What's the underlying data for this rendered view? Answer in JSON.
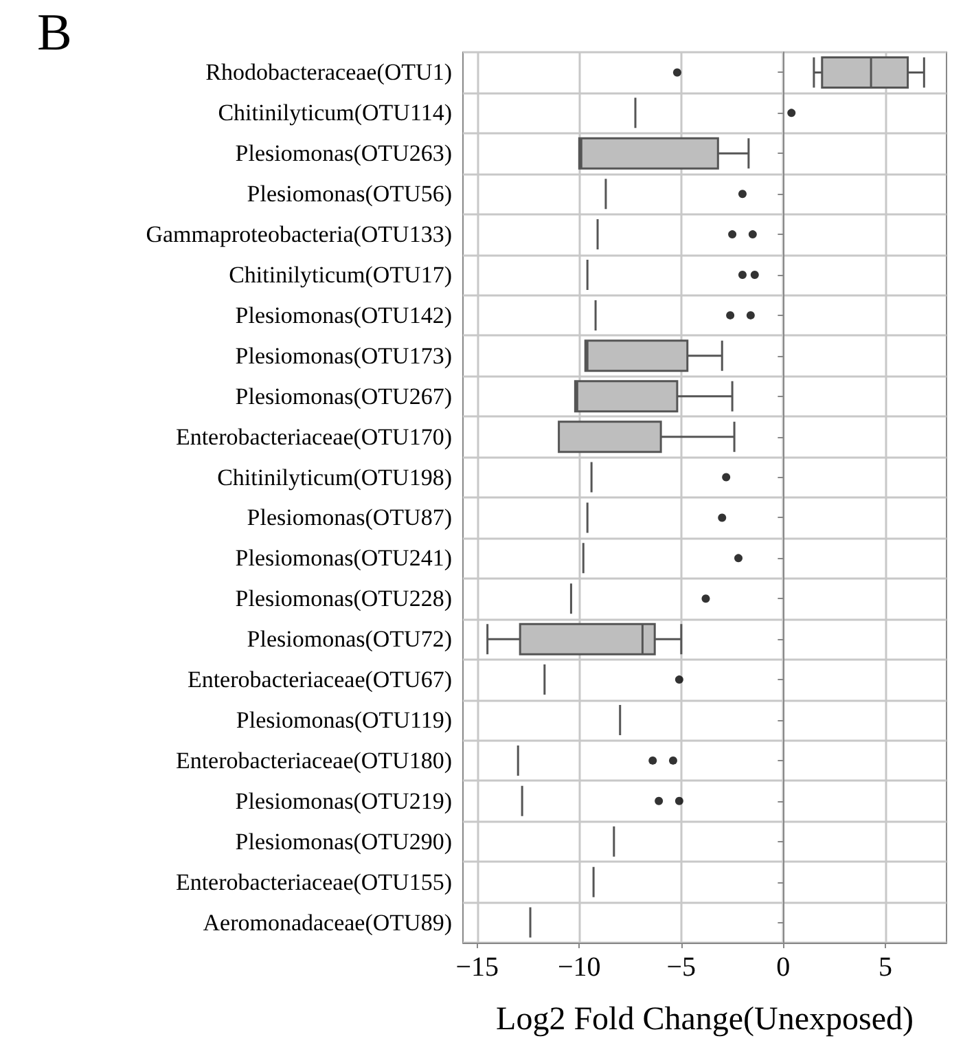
{
  "chart_data": {
    "type": "box",
    "title": "B",
    "xlabel": "Log2 Fold Change(Unexposed)",
    "orientation": "horizontal",
    "grid": true,
    "categories": [
      "Rhodobacteraceae(OTU1)",
      "Chitinilyticum(OTU114)",
      "Plesiomonas(OTU263)",
      "Plesiomonas(OTU56)",
      "Gammaproteobacteria(OTU133)",
      "Chitinilyticum(OTU17)",
      "Plesiomonas(OTU142)",
      "Plesiomonas(OTU173)",
      "Plesiomonas(OTU267)",
      "Enterobacteriaceae(OTU170)",
      "Chitinilyticum(OTU198)",
      "Plesiomonas(OTU87)",
      "Plesiomonas(OTU241)",
      "Plesiomonas(OTU228)",
      "Plesiomonas(OTU72)",
      "Enterobacteriaceae(OTU67)",
      "Plesiomonas(OTU119)",
      "Enterobacteriaceae(OTU180)",
      "Plesiomonas(OTU219)",
      "Plesiomonas(OTU290)",
      "Enterobacteriaceae(OTU155)",
      "Aeromonadaceae(OTU89)"
    ],
    "boxes": [
      {
        "low": 1.5,
        "q1": 1.9,
        "median": 4.3,
        "q3": 6.1,
        "high": 6.9,
        "outliers": [
          -5.2
        ]
      },
      {
        "low": -7.25,
        "q1": -7.25,
        "median": -7.25,
        "q3": -7.25,
        "high": -7.25,
        "outliers": [
          0.4
        ]
      },
      {
        "low": -10.0,
        "q1": -10.0,
        "median": -9.9,
        "q3": -3.2,
        "high": -1.7
      },
      {
        "low": -8.7,
        "q1": -8.7,
        "median": -8.7,
        "q3": -8.7,
        "high": -8.7,
        "outliers": [
          -2.0
        ]
      },
      {
        "low": -9.1,
        "q1": -9.1,
        "median": -9.1,
        "q3": -9.1,
        "high": -9.1,
        "outliers": [
          -2.5,
          -1.5
        ]
      },
      {
        "low": -9.6,
        "q1": -9.6,
        "median": -9.6,
        "q3": -9.6,
        "high": -9.6,
        "outliers": [
          -2.0,
          -1.4
        ]
      },
      {
        "low": -9.2,
        "q1": -9.2,
        "median": -9.2,
        "q3": -9.2,
        "high": -9.2,
        "outliers": [
          -2.6,
          -1.6
        ]
      },
      {
        "low": -9.7,
        "q1": -9.7,
        "median": -9.6,
        "q3": -4.7,
        "high": -3.0
      },
      {
        "low": -10.2,
        "q1": -10.2,
        "median": -10.1,
        "q3": -5.2,
        "high": -2.5
      },
      {
        "low": -11.0,
        "q1": -11.0,
        "median": -11.0,
        "q3": -6.0,
        "high": -2.4
      },
      {
        "low": -9.4,
        "q1": -9.4,
        "median": -9.4,
        "q3": -9.4,
        "high": -9.4,
        "outliers": [
          -2.8
        ]
      },
      {
        "low": -9.6,
        "q1": -9.6,
        "median": -9.6,
        "q3": -9.6,
        "high": -9.6,
        "outliers": [
          -3.0
        ]
      },
      {
        "low": -9.8,
        "q1": -9.8,
        "median": -9.8,
        "q3": -9.8,
        "high": -9.8,
        "outliers": [
          -2.2
        ]
      },
      {
        "low": -10.4,
        "q1": -10.4,
        "median": -10.4,
        "q3": -10.4,
        "high": -10.4,
        "outliers": [
          -3.8
        ]
      },
      {
        "low": -14.5,
        "q1": -12.9,
        "median": -6.9,
        "q3": -6.3,
        "high": -5.0
      },
      {
        "low": -11.7,
        "q1": -11.7,
        "median": -11.7,
        "q3": -11.7,
        "high": -11.7,
        "outliers": [
          -5.1
        ]
      },
      {
        "low": -8.0,
        "q1": -8.0,
        "median": -8.0,
        "q3": -8.0,
        "high": -8.0
      },
      {
        "low": -13.0,
        "q1": -13.0,
        "median": -13.0,
        "q3": -13.0,
        "high": -13.0,
        "outliers": [
          -6.4,
          -5.4
        ]
      },
      {
        "low": -12.8,
        "q1": -12.8,
        "median": -12.8,
        "q3": -12.8,
        "high": -12.8,
        "outliers": [
          -6.1,
          -5.1
        ]
      },
      {
        "low": -8.3,
        "q1": -8.3,
        "median": -8.3,
        "q3": -8.3,
        "high": -8.3
      },
      {
        "low": -9.3,
        "q1": -9.3,
        "median": -9.3,
        "q3": -9.3,
        "high": -9.3
      },
      {
        "low": -12.4,
        "q1": -12.4,
        "median": -12.4,
        "q3": -12.4,
        "high": -12.4
      }
    ],
    "xlim": [
      -15.7,
      8
    ],
    "xticks": [
      {
        "value": -15,
        "label": "−15"
      },
      {
        "value": -10,
        "label": "−10"
      },
      {
        "value": -5,
        "label": "−5"
      },
      0,
      5
    ]
  }
}
